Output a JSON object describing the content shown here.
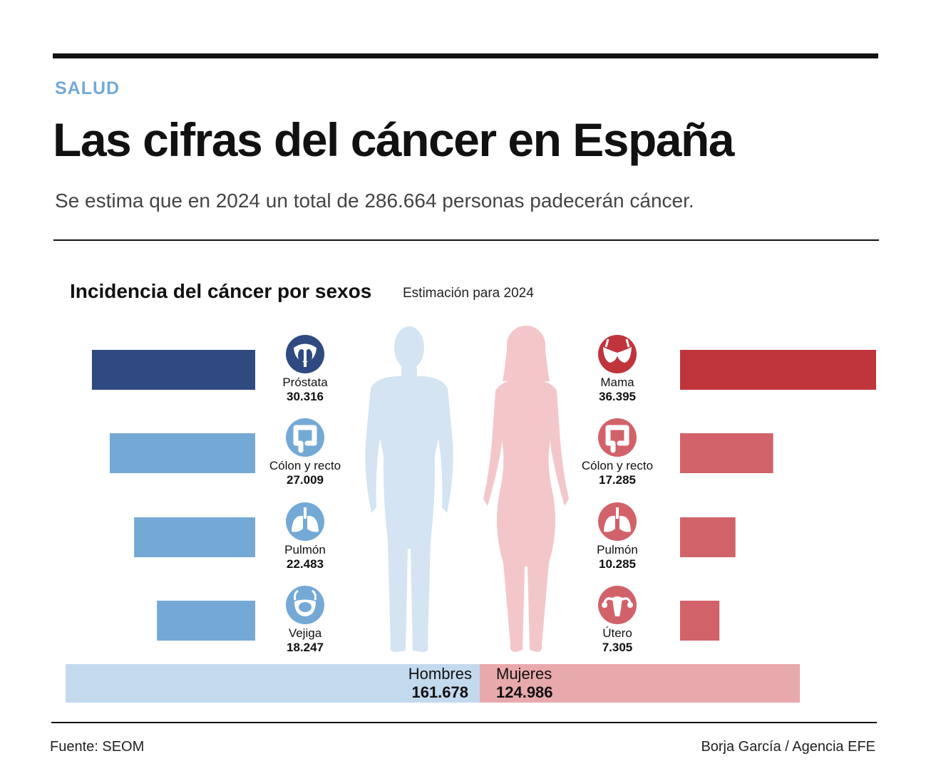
{
  "header": {
    "section": "SALUD",
    "title": "Las cifras del cáncer en España",
    "subtitle": "Se estima que en 2024 un total de 286.664 personas padecerán cáncer."
  },
  "colors": {
    "accent_label": "#74a9d6",
    "men_dark": "#2e4a80",
    "men": "#74a9d6",
    "men_light": "#c3d9ee",
    "men_silhouette": "#d4e4f2",
    "women_dark": "#c0343c",
    "women": "#d2626a",
    "women_light": "#e8a9ad",
    "women_silhouette": "#f3c7ca"
  },
  "chart_data": {
    "type": "bar",
    "title": "Incidencia del cáncer por sexos",
    "subtitle": "Estimación para 2024",
    "series": [
      {
        "name": "Hombres",
        "items": [
          {
            "label": "Próstata",
            "value": 30316,
            "value_label": "30.316",
            "icon": "prostate-icon"
          },
          {
            "label": "Cólon y recto",
            "value": 27009,
            "value_label": "27.009",
            "icon": "colon-icon"
          },
          {
            "label": "Pulmón",
            "value": 22483,
            "value_label": "22.483",
            "icon": "lungs-icon"
          },
          {
            "label": "Vejiga",
            "value": 18247,
            "value_label": "18.247",
            "icon": "bladder-icon"
          }
        ]
      },
      {
        "name": "Mujeres",
        "items": [
          {
            "label": "Mama",
            "value": 36395,
            "value_label": "36.395",
            "icon": "breast-icon"
          },
          {
            "label": "Cólon y recto",
            "value": 17285,
            "value_label": "17.285",
            "icon": "colon-icon"
          },
          {
            "label": "Pulmón",
            "value": 10285,
            "value_label": "10.285",
            "icon": "lungs-icon"
          },
          {
            "label": "Útero",
            "value": 7305,
            "value_label": "7.305",
            "icon": "uterus-icon"
          }
        ]
      }
    ],
    "totals": [
      {
        "name": "Hombres",
        "value": 161678,
        "value_label": "161.678"
      },
      {
        "name": "Mujeres",
        "value": 124986,
        "value_label": "124.986"
      }
    ]
  },
  "footer": {
    "source": "Fuente: SEOM",
    "credit": "Borja García / Agencia EFE"
  }
}
